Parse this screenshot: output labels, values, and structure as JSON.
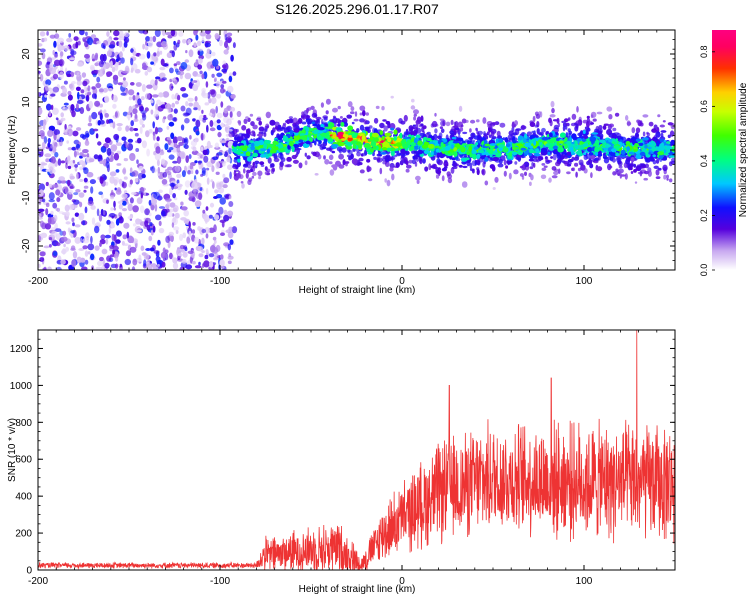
{
  "title": "S126.2025.296.01.17.R07",
  "chart_data": [
    {
      "type": "heatmap",
      "name": "spectrogram",
      "xlabel": "Height of straight line (km)",
      "ylabel": "Frequency (Hz)",
      "xlim": [
        -200,
        150
      ],
      "ylim": [
        -25,
        25
      ],
      "x_ticks": [
        -200,
        -100,
        0,
        100
      ],
      "y_ticks": [
        -20,
        -10,
        0,
        10,
        20
      ],
      "noise_region": {
        "x_range": [
          -200,
          -92
        ],
        "freq_range": [
          -25,
          25
        ],
        "amplitude": "low (0.1-0.25)"
      },
      "signal_start_km": -92,
      "signal_band_halfwidth_hz": 3,
      "ridge_frequency": [
        {
          "x": -90,
          "f": 0
        },
        {
          "x": -70,
          "f": 0.5
        },
        {
          "x": -50,
          "f": 3.5
        },
        {
          "x": -40,
          "f": 3.5
        },
        {
          "x": -30,
          "f": 2.5
        },
        {
          "x": -15,
          "f": 1.5
        },
        {
          "x": 0,
          "f": 1.5
        },
        {
          "x": 20,
          "f": 0.5
        },
        {
          "x": 40,
          "f": 0
        },
        {
          "x": 60,
          "f": 0.5
        },
        {
          "x": 80,
          "f": 1.5
        },
        {
          "x": 100,
          "f": 1
        },
        {
          "x": 120,
          "f": 0.5
        },
        {
          "x": 150,
          "f": 0
        }
      ],
      "ridge_amplitude_peak": {
        "x_range": [
          -40,
          0
        ],
        "value": 0.85
      },
      "colorbar": {
        "label": "Normalized spectral amplitude",
        "range": [
          0,
          0.88
        ],
        "ticks": [
          0.0,
          0.2,
          0.4,
          0.6,
          0.8
        ],
        "tick_labels": [
          "0.0",
          "0.2",
          "0.4",
          "0.6",
          "0.8"
        ]
      }
    },
    {
      "type": "line",
      "name": "snr",
      "color": "#ee3333",
      "xlabel": "Height of straight line (km)",
      "ylabel": "SNR (10 * v/v)",
      "xlim": [
        -200,
        150
      ],
      "ylim": [
        0,
        1300
      ],
      "x_ticks": [
        -200,
        -100,
        0,
        100
      ],
      "y_ticks": [
        0,
        200,
        400,
        600,
        800,
        1000,
        1200
      ],
      "envelope": [
        {
          "x": -200,
          "mean": 25,
          "spread": 15
        },
        {
          "x": -80,
          "mean": 25,
          "spread": 15
        },
        {
          "x": -76,
          "mean": 80,
          "spread": 90
        },
        {
          "x": -50,
          "mean": 110,
          "spread": 120
        },
        {
          "x": -35,
          "mean": 120,
          "spread": 140
        },
        {
          "x": -22,
          "mean": 30,
          "spread": 50
        },
        {
          "x": -10,
          "mean": 200,
          "spread": 150
        },
        {
          "x": 0,
          "mean": 280,
          "spread": 180
        },
        {
          "x": 20,
          "mean": 420,
          "spread": 260
        },
        {
          "x": 50,
          "mean": 500,
          "spread": 280
        },
        {
          "x": 100,
          "mean": 480,
          "spread": 300
        },
        {
          "x": 150,
          "mean": 470,
          "spread": 300
        }
      ],
      "peaks": [
        {
          "x": 26,
          "y": 1000
        },
        {
          "x": 82,
          "y": 1040
        },
        {
          "x": 129,
          "y": 1300
        }
      ]
    }
  ]
}
